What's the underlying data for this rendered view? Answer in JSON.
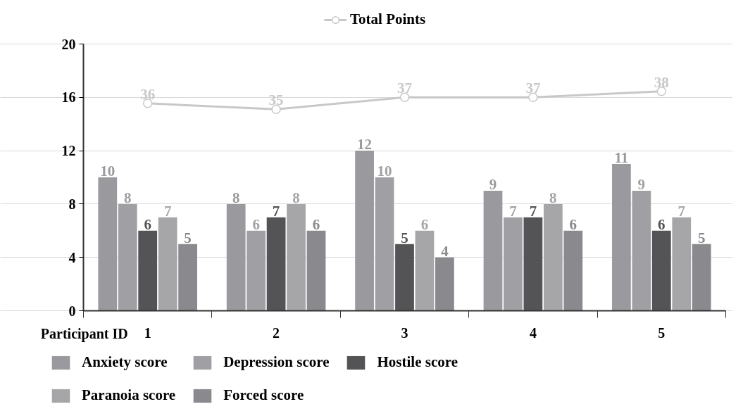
{
  "chart_data": {
    "type": "bar",
    "xlabel": "Participant ID",
    "categories": [
      "1",
      "2",
      "3",
      "4",
      "5"
    ],
    "series": [
      {
        "name": "Anxiety score",
        "color": "#9a9a9e",
        "values": [
          10,
          8,
          12,
          9,
          11
        ]
      },
      {
        "name": "Depression score",
        "color": "#a0a0a4",
        "values": [
          8,
          6,
          10,
          7,
          9
        ]
      },
      {
        "name": "Hostile score",
        "color": "#545456",
        "values": [
          6,
          7,
          5,
          7,
          6
        ]
      },
      {
        "name": "Paranoia score",
        "color": "#a6a6a8",
        "values": [
          7,
          8,
          6,
          8,
          7
        ]
      },
      {
        "name": "Forced score",
        "color": "#8a8a8e",
        "values": [
          5,
          6,
          4,
          6,
          5
        ]
      },
      {
        "name": "Total Points",
        "type": "line",
        "axis": "y2",
        "color": "#c8c8c8",
        "values": [
          36,
          35,
          37,
          37,
          38
        ]
      }
    ],
    "ylim": [
      0,
      20
    ],
    "yticks": [
      0,
      4,
      8,
      12,
      16,
      20
    ],
    "y2lim": [
      1.4,
      45.9
    ],
    "data_labels": true,
    "grid": "y",
    "legend": "bottom",
    "marker": "circle",
    "line_style": "solid"
  }
}
